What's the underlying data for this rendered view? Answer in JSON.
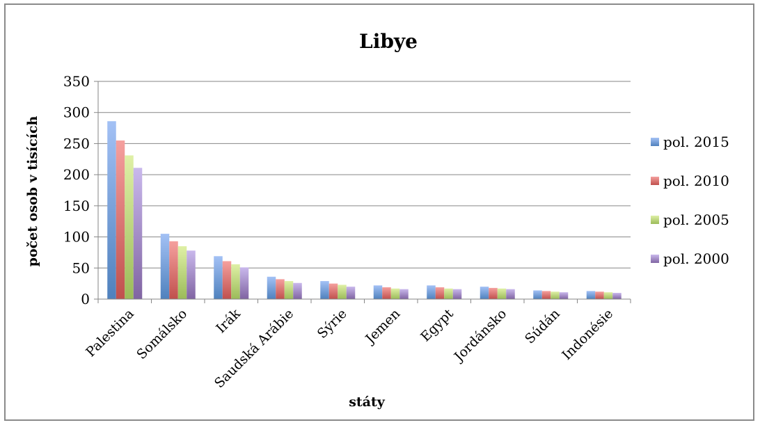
{
  "chart_data": {
    "type": "bar",
    "title": "Libye",
    "xlabel": "státy",
    "ylabel": "počet osob v tisících",
    "ylim": [
      0,
      350
    ],
    "yticks": [
      0,
      50,
      100,
      150,
      200,
      250,
      300,
      350
    ],
    "grid": true,
    "legend_position": "right",
    "categories": [
      "Palestina",
      "Somálsko",
      "Irák",
      "Saudská Arábie",
      "Sýrie",
      "Jemen",
      "Egypt",
      "Jordánsko",
      "Súdán",
      "Indonésie"
    ],
    "series": [
      {
        "name": "pol. 2015",
        "color": "#4f81bd",
        "light": "#a3c1f5",
        "values": [
          286,
          105,
          69,
          36,
          29,
          22,
          22,
          20,
          14,
          13
        ]
      },
      {
        "name": "pol. 2010",
        "color": "#c0504d",
        "light": "#f5a09e",
        "values": [
          255,
          93,
          61,
          32,
          25,
          19,
          19,
          18,
          13,
          12
        ]
      },
      {
        "name": "pol. 2005",
        "color": "#9bbb59",
        "light": "#dff0a6",
        "values": [
          231,
          85,
          56,
          29,
          23,
          17,
          17,
          17,
          12,
          11
        ]
      },
      {
        "name": "pol. 2000",
        "color": "#8064a2",
        "light": "#c9b8ec",
        "values": [
          211,
          78,
          51,
          26,
          20,
          16,
          16,
          16,
          11,
          10
        ]
      }
    ]
  }
}
